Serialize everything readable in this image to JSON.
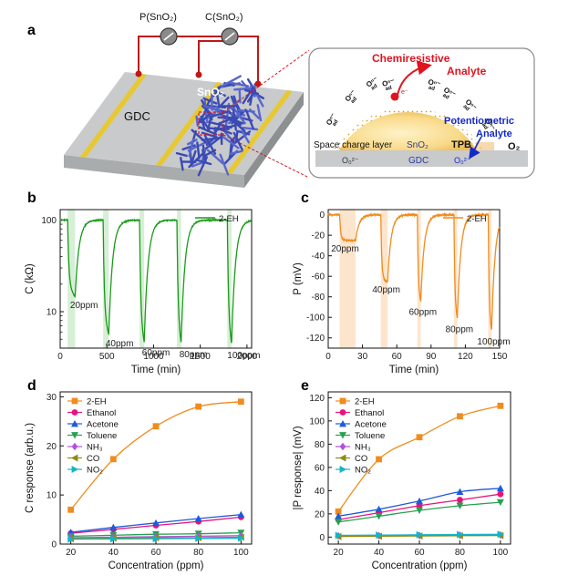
{
  "panel_a": {
    "letter": "a",
    "meter_p_label": "P(SnO₂)",
    "meter_c_label": "C(SnO₂)",
    "substrate_label": "GDC",
    "film_label": "SnO₂",
    "inset": {
      "chemiresistive_label": "Chemiresistive",
      "analyte_top_label": "Analyte",
      "electron_label": "e⁻",
      "adsorbed_oxygen_label": "Oⁿ⁻",
      "adsorbed_oxygen_sub": "ad",
      "potentiometric_label": "Potentiometric",
      "analyte_right_label": "Analyte",
      "o2_label": "O₂",
      "tpb_label": "TPB",
      "space_charge_label": "Space charge layer",
      "sno2_label": "SnO₂",
      "gdc_label": "GDC",
      "lattice_oxygen_left": "O₀²⁻",
      "lattice_oxygen_right": "O₀²⁻"
    }
  },
  "colors": {
    "green": "#1a9a1a",
    "orange": "#f08c1e",
    "red": "#e0141e",
    "blue": "#1428c8",
    "gdc_gray": "#c8cacb",
    "sno2_blue": "#3a4ab4",
    "electrode_yellow": "#e8c832",
    "highlight_green": "#cfeccf",
    "highlight_orange": "#fde0c4"
  },
  "chart_data": [
    {
      "id": "b",
      "type": "line",
      "letter": "b",
      "title": "",
      "xlabel": "Time (min)",
      "ylabel": "C (kΩ)",
      "xlim": [
        0,
        2050
      ],
      "xticks": [
        0,
        500,
        1000,
        1500,
        2000
      ],
      "ylim": [
        4,
        130
      ],
      "yscale": "log",
      "yticks": [
        10,
        100
      ],
      "legend": [
        {
          "name": "2-EH",
          "color": "#1a9a1a"
        }
      ],
      "legend_position": "top-right",
      "baseline": 100,
      "pulses": [
        {
          "start": 80,
          "end": 160,
          "min": 14.5,
          "label": "20ppm"
        },
        {
          "start": 460,
          "end": 520,
          "min": 5.5,
          "label": "40ppm"
        },
        {
          "start": 850,
          "end": 900,
          "min": 4.4,
          "label": "60ppm"
        },
        {
          "start": 1250,
          "end": 1295,
          "min": 4.2,
          "label": "80ppm"
        },
        {
          "start": 1790,
          "end": 1835,
          "min": 4.1,
          "label": "100ppm"
        }
      ]
    },
    {
      "id": "c",
      "type": "line",
      "letter": "c",
      "title": "",
      "xlabel": "Time (min)",
      "ylabel": "P (mV)",
      "xlim": [
        0,
        150
      ],
      "xticks": [
        0,
        30,
        60,
        90,
        120,
        150
      ],
      "ylim": [
        -130,
        5
      ],
      "yticks": [
        0,
        -20,
        -40,
        -60,
        -80,
        -100,
        -120
      ],
      "legend": [
        {
          "name": "2-EH",
          "color": "#f08c1e"
        }
      ],
      "legend_position": "top-right",
      "baseline": 0,
      "pulses": [
        {
          "start": 10,
          "end": 24,
          "min": -25,
          "label": "20ppm"
        },
        {
          "start": 46,
          "end": 52,
          "min": -65,
          "label": "40ppm"
        },
        {
          "start": 78,
          "end": 81,
          "min": -87,
          "label": "60ppm"
        },
        {
          "start": 110,
          "end": 113,
          "min": -104,
          "label": "80ppm"
        },
        {
          "start": 140,
          "end": 143,
          "min": -116,
          "label": "100ppm"
        }
      ]
    },
    {
      "id": "d",
      "type": "scatter",
      "letter": "d",
      "title": "",
      "xlabel": "Concentration (ppm)",
      "ylabel": "C response (arb.u.)",
      "xlim": [
        15,
        105
      ],
      "xticks": [
        20,
        40,
        60,
        80,
        100
      ],
      "ylim": [
        0,
        31
      ],
      "yticks": [
        0,
        10,
        20,
        30
      ],
      "legend_position": "top-left",
      "x": [
        20,
        40,
        60,
        80,
        100
      ],
      "series": [
        {
          "name": "2-EH",
          "color": "#f08c1e",
          "marker": "square",
          "values": [
            7,
            17.3,
            24,
            28,
            29
          ]
        },
        {
          "name": "Ethanol",
          "color": "#e6147a",
          "marker": "circle",
          "values": [
            2.2,
            3,
            3.8,
            4.6,
            5.5
          ]
        },
        {
          "name": "Acetone",
          "color": "#1e5adc",
          "marker": "triangle-up",
          "values": [
            2.4,
            3.4,
            4.3,
            5.2,
            6
          ]
        },
        {
          "name": "Toluene",
          "color": "#28a050",
          "marker": "triangle-down",
          "values": [
            1.6,
            1.8,
            2,
            2.1,
            2.3
          ]
        },
        {
          "name": "NH₃",
          "color": "#b450dc",
          "marker": "diamond",
          "values": [
            1.3,
            1.4,
            1.5,
            1.6,
            1.7
          ]
        },
        {
          "name": "CO",
          "color": "#8c8c14",
          "marker": "triangle-left",
          "values": [
            1.1,
            1.2,
            1.3,
            1.3,
            1.4
          ]
        },
        {
          "name": "NO₂",
          "color": "#14b4c8",
          "marker": "triangle-right",
          "values": [
            1,
            1.05,
            1.1,
            1.15,
            1.2
          ]
        }
      ]
    },
    {
      "id": "e",
      "type": "scatter",
      "letter": "e",
      "title": "",
      "xlabel": "Concentration (ppm)",
      "ylabel": "|P response| (mV)",
      "xlim": [
        15,
        105
      ],
      "xticks": [
        20,
        40,
        60,
        80,
        100
      ],
      "ylim": [
        -6,
        125
      ],
      "yticks": [
        0,
        20,
        40,
        60,
        80,
        100,
        120
      ],
      "legend_position": "top-left",
      "x": [
        20,
        40,
        60,
        80,
        100
      ],
      "series": [
        {
          "name": "2-EH",
          "color": "#f08c1e",
          "marker": "square",
          "values": [
            22,
            67,
            86,
            104,
            113
          ]
        },
        {
          "name": "Ethanol",
          "color": "#e6147a",
          "marker": "circle",
          "values": [
            15,
            21,
            27,
            32,
            37
          ]
        },
        {
          "name": "Acetone",
          "color": "#1e5adc",
          "marker": "triangle-up",
          "values": [
            18,
            24,
            31,
            39,
            42
          ]
        },
        {
          "name": "Toluene",
          "color": "#28a050",
          "marker": "triangle-down",
          "values": [
            13,
            18,
            23,
            27,
            30
          ]
        },
        {
          "name": "NH₃",
          "color": "#b450dc",
          "marker": "diamond",
          "values": [
            1,
            1.2,
            1.4,
            1.6,
            1.8
          ]
        },
        {
          "name": "CO",
          "color": "#8c8c14",
          "marker": "triangle-left",
          "values": [
            0.5,
            0.8,
            1,
            1.2,
            1.4
          ]
        },
        {
          "name": "NO₂",
          "color": "#14b4c8",
          "marker": "triangle-right",
          "values": [
            1.5,
            1.7,
            2,
            2.2,
            2.4
          ]
        }
      ]
    }
  ]
}
